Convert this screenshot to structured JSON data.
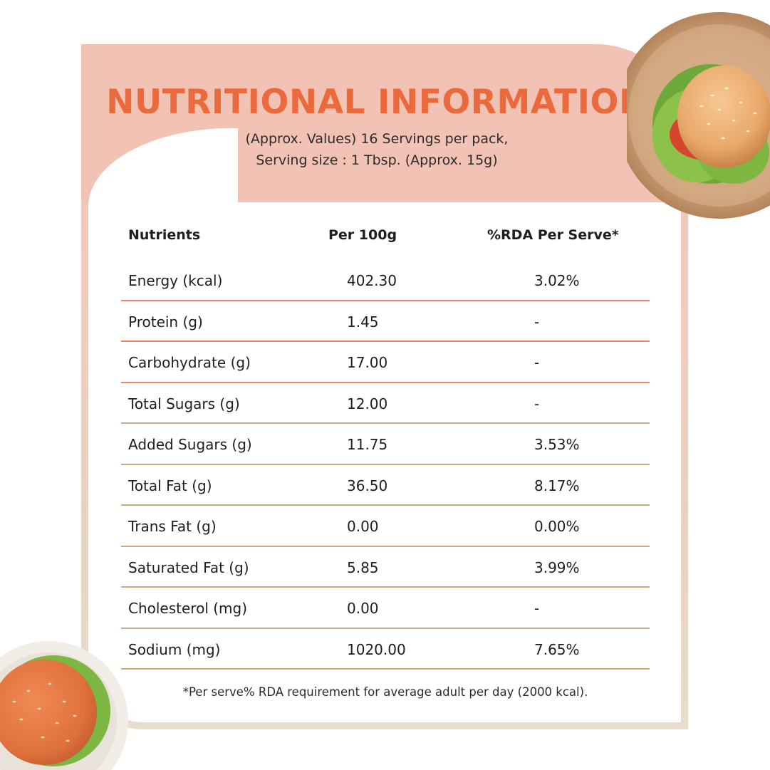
{
  "header": {
    "title": "NUTRITIONAL INFORMATION",
    "subtitle_line1": "(Approx. Values) 16 Servings per pack,",
    "subtitle_line2": "Serving size : 1 Tbsp. (Approx. 15g)"
  },
  "table": {
    "columns": [
      "Nutrients",
      "Per 100g",
      "%RDA Per Serve*"
    ],
    "rows": [
      {
        "nutrient": "Energy (kcal)",
        "per100g": "402.30",
        "rda": "3.02%"
      },
      {
        "nutrient": "Protein (g)",
        "per100g": "1.45",
        "rda": "-"
      },
      {
        "nutrient": "Carbohydrate (g)",
        "per100g": "17.00",
        "rda": "-"
      },
      {
        "nutrient": "Total Sugars (g)",
        "per100g": "12.00",
        "rda": "-"
      },
      {
        "nutrient": "Added Sugars (g)",
        "per100g": "11.75",
        "rda": "3.53%"
      },
      {
        "nutrient": "Total Fat (g)",
        "per100g": "36.50",
        "rda": "8.17%"
      },
      {
        "nutrient": "Trans Fat (g)",
        "per100g": "0.00",
        "rda": "0.00%"
      },
      {
        "nutrient": "Saturated Fat (g)",
        "per100g": "5.85",
        "rda": "3.99%"
      },
      {
        "nutrient": "Cholesterol (mg)",
        "per100g": "0.00",
        "rda": "-"
      },
      {
        "nutrient": "Sodium (mg)",
        "per100g": "1020.00",
        "rda": "7.65%"
      }
    ]
  },
  "footnote": "*Per serve% RDA requirement for average adult per day (2000 kcal).",
  "colors": {
    "title_orange": "#ea6a3d",
    "header_peach": "#f2c3b4",
    "divider_orange": "#e6855f",
    "divider_tan": "#c9ad7c",
    "text_dark": "#1e1e1e"
  },
  "icons": {
    "top_right": "burger-on-wooden-plate-icon",
    "bottom_left": "burger-on-white-plate-icon"
  }
}
